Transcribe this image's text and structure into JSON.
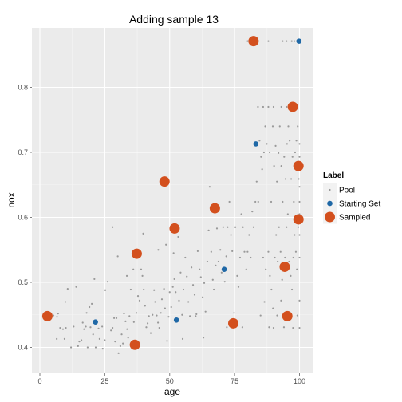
{
  "chart_data": {
    "type": "scatter",
    "title": "Adding sample 13",
    "xlabel": "age",
    "ylabel": "nox",
    "xlim": [
      0,
      100
    ],
    "ylim": [
      0.36,
      0.9
    ],
    "x_ticks": [
      0,
      25,
      50,
      75,
      100
    ],
    "y_ticks": [
      0.4,
      0.5,
      0.6,
      0.7,
      0.8
    ],
    "grid": true,
    "legend": {
      "title": "Label",
      "placement": "right",
      "entries": [
        "Pool",
        "Starting Set",
        "Sampled"
      ]
    },
    "colors": {
      "panel": "#EBEBEB",
      "grid_major": "#FFFFFF",
      "pool": "#999999",
      "starting_set": "#1F68A6",
      "sampled": "#D3501E"
    },
    "series": [
      {
        "name": "Pool",
        "points": [
          [
            5.2,
            0.449
          ],
          [
            6.6,
            0.447
          ],
          [
            7.8,
            0.43
          ],
          [
            8.9,
            0.428
          ],
          [
            6.5,
            0.413
          ],
          [
            9.5,
            0.413
          ],
          [
            10.0,
            0.43
          ],
          [
            7.0,
            0.452
          ],
          [
            9.8,
            0.47
          ],
          [
            10.7,
            0.49
          ],
          [
            13.0,
            0.432
          ],
          [
            14.7,
            0.402
          ],
          [
            15.2,
            0.409
          ],
          [
            16.0,
            0.411
          ],
          [
            17.0,
            0.428
          ],
          [
            17.7,
            0.432
          ],
          [
            18.4,
            0.4
          ],
          [
            19.1,
            0.462
          ],
          [
            19.5,
            0.431
          ],
          [
            20.5,
            0.42
          ],
          [
            21.5,
            0.4
          ],
          [
            22.6,
            0.429
          ],
          [
            23.0,
            0.413
          ],
          [
            24.2,
            0.398
          ],
          [
            25.0,
            0.411
          ],
          [
            16.5,
            0.438
          ],
          [
            18.0,
            0.453
          ],
          [
            20.0,
            0.467
          ],
          [
            21.0,
            0.505
          ],
          [
            14.0,
            0.493
          ],
          [
            25.2,
            0.488
          ],
          [
            26.1,
            0.501
          ],
          [
            27.4,
            0.426
          ],
          [
            28.0,
            0.43
          ],
          [
            28.6,
            0.445
          ],
          [
            29.0,
            0.409
          ],
          [
            29.5,
            0.445
          ],
          [
            30.3,
            0.391
          ],
          [
            31.0,
            0.402
          ],
          [
            31.5,
            0.42
          ],
          [
            32.0,
            0.406
          ],
          [
            32.4,
            0.452
          ],
          [
            33.0,
            0.44
          ],
          [
            33.6,
            0.428
          ],
          [
            34.0,
            0.415
          ],
          [
            34.5,
            0.448
          ],
          [
            35.0,
            0.489
          ],
          [
            35.5,
            0.409
          ],
          [
            36.2,
            0.439
          ],
          [
            36.8,
            0.403
          ],
          [
            37.2,
            0.453
          ],
          [
            37.8,
            0.479
          ],
          [
            38.4,
            0.472
          ],
          [
            39.0,
            0.52
          ],
          [
            39.5,
            0.51
          ],
          [
            40.0,
            0.489
          ],
          [
            40.5,
            0.464
          ],
          [
            41.0,
            0.431
          ],
          [
            41.5,
            0.437
          ],
          [
            42.0,
            0.448
          ],
          [
            42.7,
            0.422
          ],
          [
            43.4,
            0.45
          ],
          [
            44.0,
            0.488
          ],
          [
            44.4,
            0.47
          ],
          [
            45.0,
            0.449
          ],
          [
            45.5,
            0.438
          ],
          [
            46.0,
            0.43
          ],
          [
            46.6,
            0.453
          ],
          [
            47.0,
            0.474
          ],
          [
            47.8,
            0.49
          ],
          [
            48.2,
            0.46
          ],
          [
            49.0,
            0.41
          ],
          [
            49.6,
            0.447
          ],
          [
            50.0,
            0.485
          ],
          [
            50.6,
            0.462
          ],
          [
            51.2,
            0.493
          ],
          [
            51.8,
            0.505
          ],
          [
            52.3,
            0.485
          ],
          [
            53.0,
            0.44
          ],
          [
            53.6,
            0.472
          ],
          [
            54.2,
            0.515
          ],
          [
            54.8,
            0.45
          ],
          [
            55.3,
            0.489
          ],
          [
            56.0,
            0.538
          ],
          [
            56.6,
            0.509
          ],
          [
            57.2,
            0.47
          ],
          [
            57.8,
            0.448
          ],
          [
            58.4,
            0.523
          ],
          [
            59.0,
            0.496
          ],
          [
            59.6,
            0.481
          ],
          [
            60.3,
            0.451
          ],
          [
            60.8,
            0.548
          ],
          [
            61.5,
            0.52
          ],
          [
            62.0,
            0.508
          ],
          [
            62.7,
            0.477
          ],
          [
            63.3,
            0.499
          ],
          [
            63.8,
            0.455
          ],
          [
            64.5,
            0.532
          ],
          [
            65.0,
            0.58
          ],
          [
            65.4,
            0.647
          ],
          [
            66.0,
            0.547
          ],
          [
            66.6,
            0.504
          ],
          [
            67.0,
            0.489
          ],
          [
            67.7,
            0.526
          ],
          [
            68.2,
            0.583
          ],
          [
            68.8,
            0.532
          ],
          [
            69.5,
            0.55
          ],
          [
            70.0,
            0.515
          ],
          [
            70.6,
            0.585
          ],
          [
            71.2,
            0.501
          ],
          [
            71.8,
            0.54
          ],
          [
            72.3,
            0.585
          ],
          [
            73.0,
            0.624
          ],
          [
            73.6,
            0.573
          ],
          [
            74.1,
            0.548
          ],
          [
            74.8,
            0.453
          ],
          [
            75.3,
            0.585
          ],
          [
            76.0,
            0.51
          ],
          [
            76.5,
            0.493
          ],
          [
            77.1,
            0.538
          ],
          [
            77.6,
            0.605
          ],
          [
            78.2,
            0.585
          ],
          [
            78.8,
            0.547
          ],
          [
            79.5,
            0.52
          ],
          [
            80.0,
            0.547
          ],
          [
            80.6,
            0.573
          ],
          [
            81.2,
            0.538
          ],
          [
            81.8,
            0.609
          ],
          [
            82.3,
            0.585
          ],
          [
            83.0,
            0.624
          ],
          [
            83.5,
            0.655
          ],
          [
            84.1,
            0.624
          ],
          [
            84.6,
            0.718
          ],
          [
            85.2,
            0.693
          ],
          [
            85.6,
            0.674
          ],
          [
            86.3,
            0.7
          ],
          [
            86.8,
            0.74
          ],
          [
            87.4,
            0.713
          ],
          [
            88.0,
            0.77
          ],
          [
            88.5,
            0.7
          ],
          [
            89.1,
            0.624
          ],
          [
            89.7,
            0.74
          ],
          [
            90.2,
            0.679
          ],
          [
            90.8,
            0.71
          ],
          [
            91.3,
            0.655
          ],
          [
            91.9,
            0.699
          ],
          [
            92.4,
            0.74
          ],
          [
            93.0,
            0.679
          ],
          [
            93.5,
            0.624
          ],
          [
            94.1,
            0.693
          ],
          [
            94.6,
            0.659
          ],
          [
            95.2,
            0.713
          ],
          [
            95.7,
            0.74
          ],
          [
            96.2,
            0.718
          ],
          [
            96.8,
            0.659
          ],
          [
            97.3,
            0.693
          ],
          [
            97.8,
            0.624
          ],
          [
            98.3,
            0.7
          ],
          [
            98.8,
            0.718
          ],
          [
            99.3,
            0.74
          ],
          [
            99.7,
            0.659
          ],
          [
            100.0,
            0.713
          ],
          [
            100.0,
            0.693
          ],
          [
            100.0,
            0.679
          ],
          [
            86.0,
            0.538
          ],
          [
            87.0,
            0.52
          ],
          [
            88.0,
            0.547
          ],
          [
            88.6,
            0.51
          ],
          [
            89.2,
            0.489
          ],
          [
            89.8,
            0.46
          ],
          [
            90.5,
            0.538
          ],
          [
            91.0,
            0.573
          ],
          [
            91.6,
            0.532
          ],
          [
            92.1,
            0.585
          ],
          [
            92.7,
            0.547
          ],
          [
            93.3,
            0.504
          ],
          [
            93.8,
            0.448
          ],
          [
            94.4,
            0.538
          ],
          [
            95.0,
            0.585
          ],
          [
            95.5,
            0.605
          ],
          [
            96.0,
            0.532
          ],
          [
            96.6,
            0.51
          ],
          [
            97.1,
            0.489
          ],
          [
            97.6,
            0.538
          ],
          [
            98.1,
            0.573
          ],
          [
            98.6,
            0.547
          ],
          [
            99.0,
            0.52
          ],
          [
            99.5,
            0.585
          ],
          [
            100.0,
            0.605
          ],
          [
            100.0,
            0.538
          ],
          [
            100.0,
            0.573
          ],
          [
            100.0,
            0.624
          ],
          [
            100.0,
            0.647
          ],
          [
            85.0,
            0.449
          ],
          [
            86.5,
            0.47
          ],
          [
            88.3,
            0.431
          ],
          [
            90.0,
            0.43
          ],
          [
            91.4,
            0.449
          ],
          [
            92.9,
            0.472
          ],
          [
            94.0,
            0.431
          ],
          [
            95.8,
            0.448
          ],
          [
            97.5,
            0.43
          ],
          [
            99.2,
            0.449
          ],
          [
            100.0,
            0.472
          ],
          [
            100.0,
            0.43
          ],
          [
            84.0,
            0.77
          ],
          [
            86.0,
            0.77
          ],
          [
            90.0,
            0.77
          ],
          [
            93.0,
            0.77
          ],
          [
            95.0,
            0.77
          ],
          [
            99.0,
            0.77
          ],
          [
            93.5,
            0.871
          ],
          [
            95.0,
            0.871
          ],
          [
            97.0,
            0.871
          ],
          [
            98.0,
            0.871
          ],
          [
            99.0,
            0.871
          ],
          [
            88.0,
            0.871
          ],
          [
            80.0,
            0.871
          ],
          [
            72.0,
            0.431
          ],
          [
            78.0,
            0.431
          ],
          [
            60.0,
            0.448
          ],
          [
            63.0,
            0.415
          ],
          [
            55.0,
            0.413
          ],
          [
            24.0,
            0.432
          ],
          [
            12.0,
            0.4
          ],
          [
            28.0,
            0.585
          ],
          [
            30.0,
            0.54
          ],
          [
            33.5,
            0.51
          ],
          [
            36.0,
            0.52
          ],
          [
            39.8,
            0.575
          ],
          [
            45.6,
            0.55
          ],
          [
            48.6,
            0.558
          ],
          [
            51.5,
            0.545
          ],
          [
            53.3,
            0.57
          ]
        ]
      },
      {
        "name": "Starting Set",
        "points": [
          [
            21.4,
            0.439
          ],
          [
            52.6,
            0.442
          ],
          [
            71.0,
            0.52
          ],
          [
            83.2,
            0.713
          ],
          [
            99.8,
            0.871
          ]
        ]
      },
      {
        "name": "Sampled",
        "points": [
          [
            2.9,
            0.448
          ],
          [
            37.3,
            0.544
          ],
          [
            36.6,
            0.404
          ],
          [
            48.0,
            0.655
          ],
          [
            51.9,
            0.583
          ],
          [
            67.4,
            0.614
          ],
          [
            74.5,
            0.437
          ],
          [
            82.3,
            0.871
          ],
          [
            94.3,
            0.524
          ],
          [
            95.3,
            0.448
          ],
          [
            97.4,
            0.77
          ],
          [
            99.6,
            0.679
          ],
          [
            99.6,
            0.597
          ]
        ]
      }
    ]
  }
}
